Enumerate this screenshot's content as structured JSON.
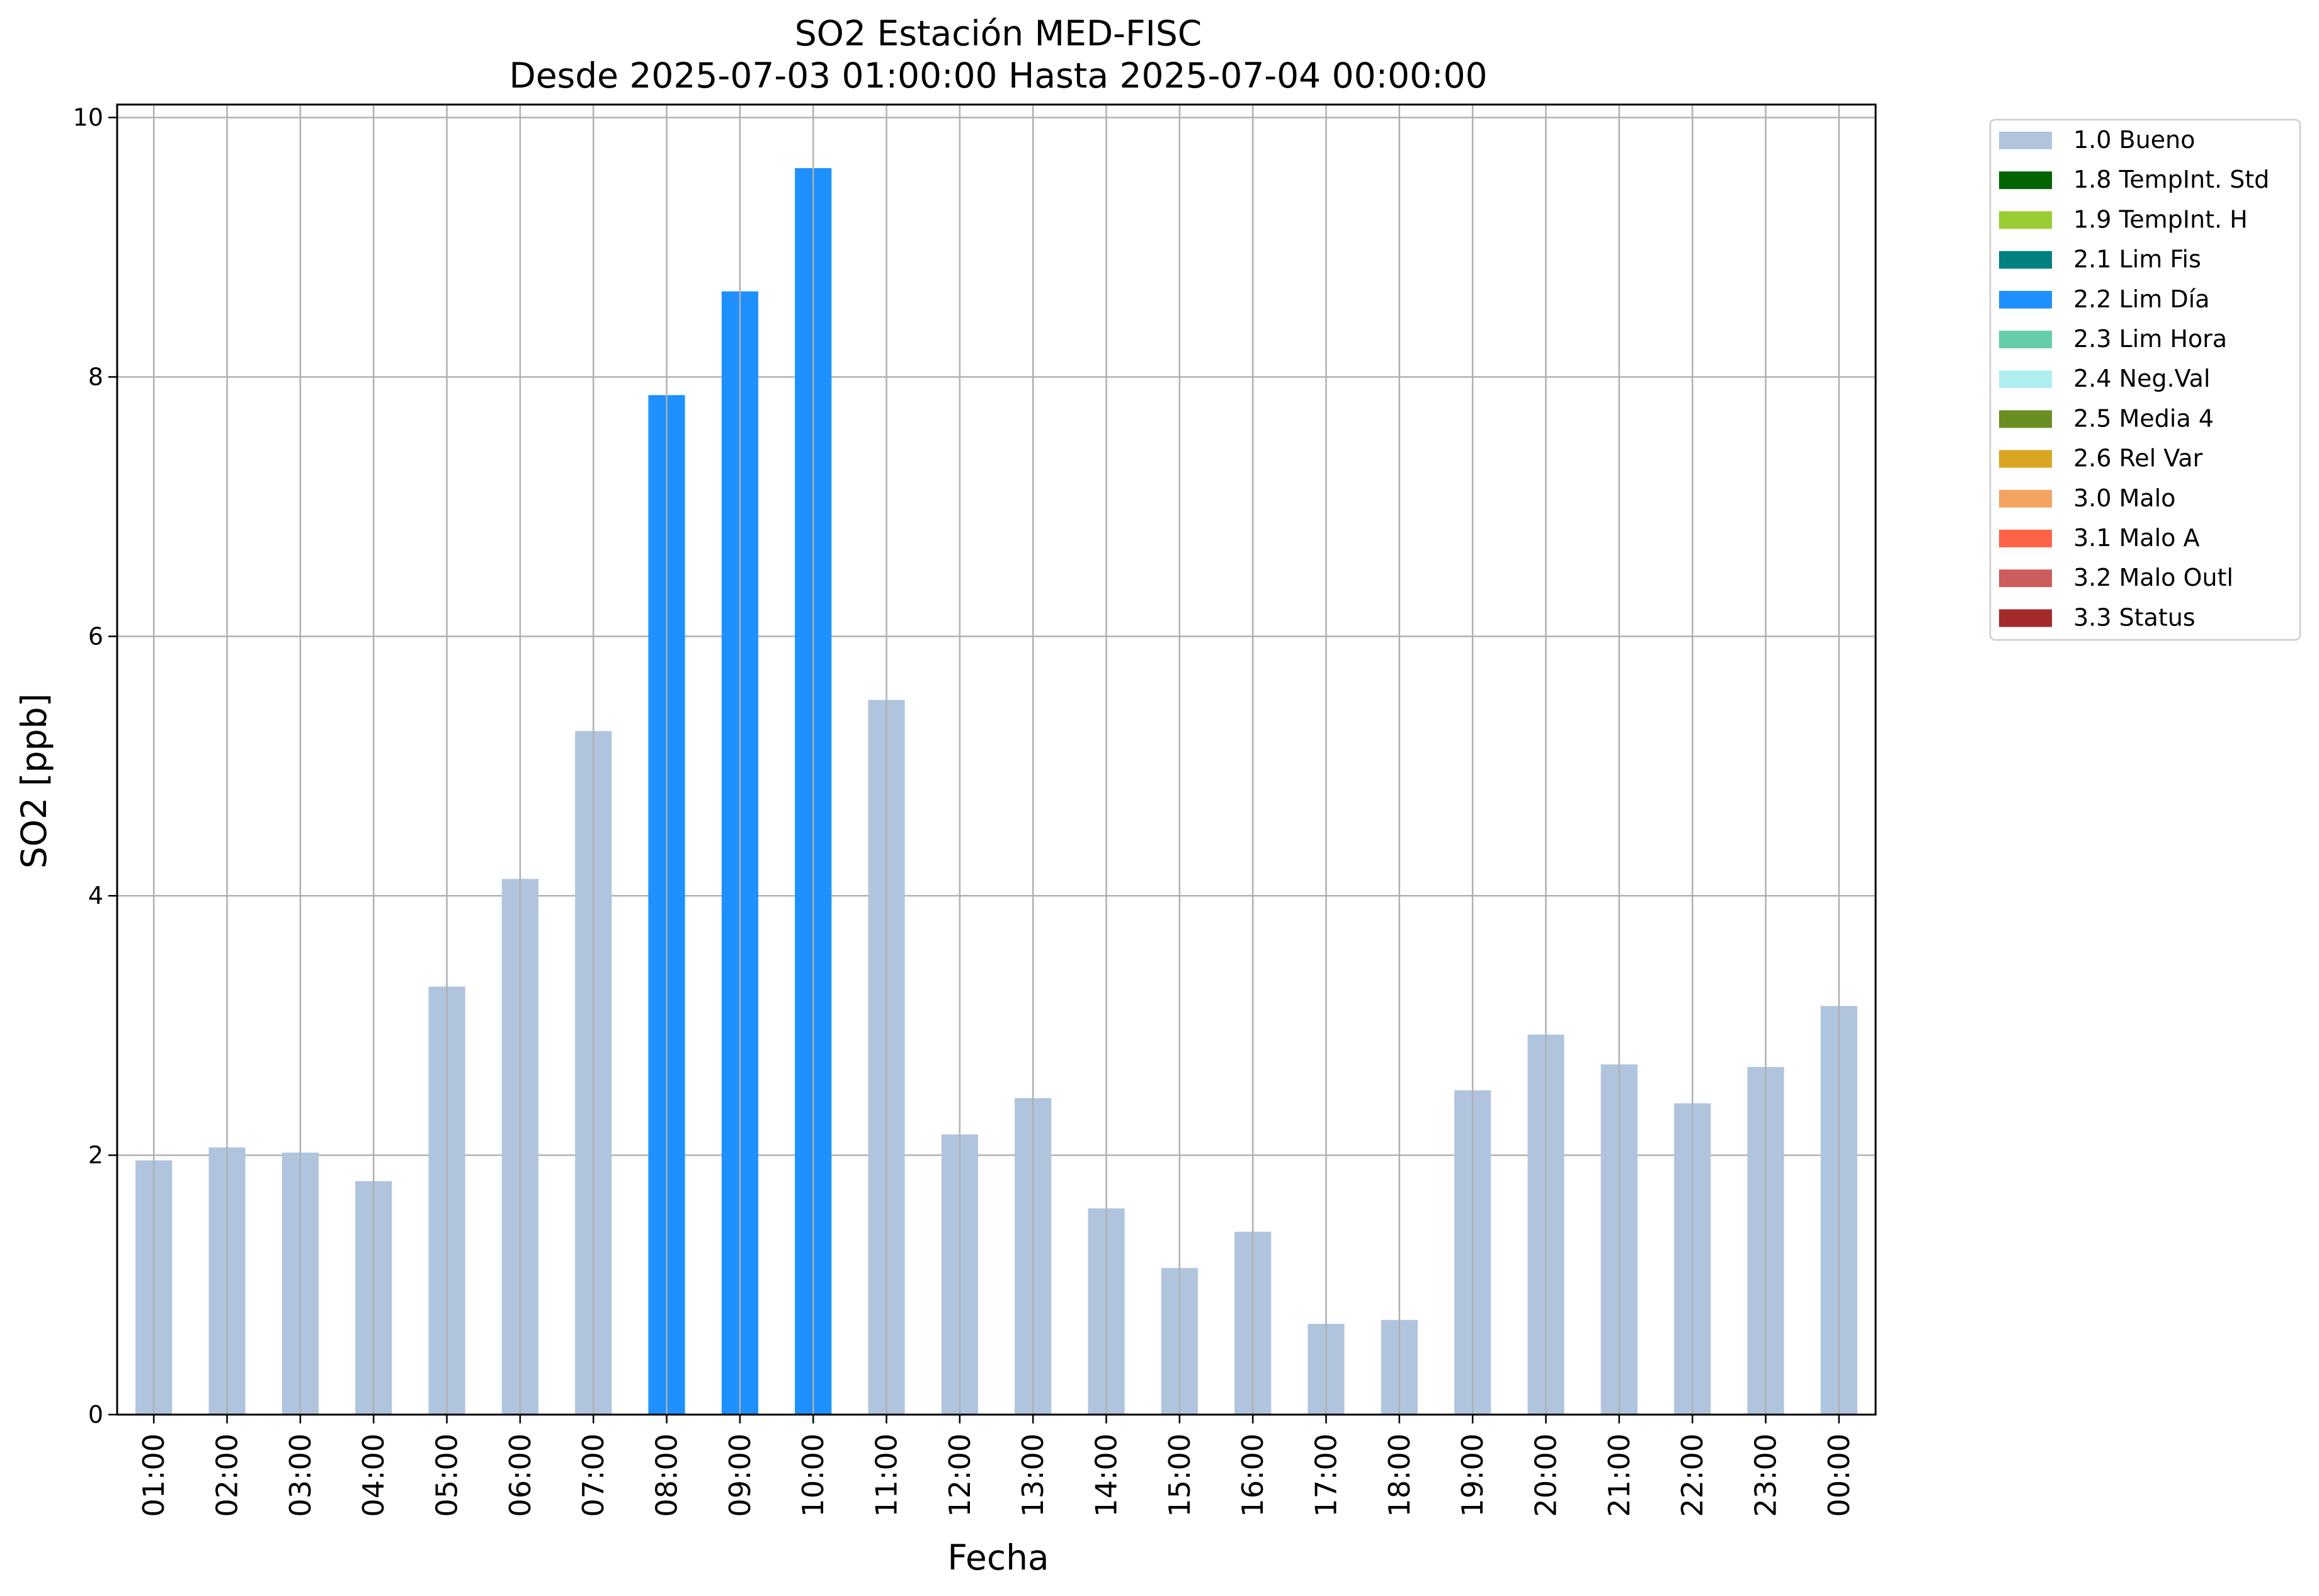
{
  "chart_data": {
    "type": "bar",
    "title": "SO2 Estación MED-FISC",
    "subtitle": "Desde 2025-07-03 01:00:00 Hasta 2025-07-04 00:00:00",
    "xlabel": "Fecha",
    "ylabel": "SO2 [ppb]",
    "ylim": [
      0,
      10.1
    ],
    "yticks": [
      0,
      2,
      4,
      6,
      8,
      10
    ],
    "grid": true,
    "legend_position": "outside top-right",
    "categories": [
      "01:00",
      "02:00",
      "03:00",
      "04:00",
      "05:00",
      "06:00",
      "07:00",
      "08:00",
      "09:00",
      "10:00",
      "11:00",
      "12:00",
      "13:00",
      "14:00",
      "15:00",
      "16:00",
      "17:00",
      "18:00",
      "19:00",
      "20:00",
      "21:00",
      "22:00",
      "23:00",
      "00:00"
    ],
    "values": [
      1.96,
      2.06,
      2.02,
      1.8,
      3.3,
      4.13,
      5.27,
      7.86,
      8.66,
      9.61,
      5.51,
      2.16,
      2.44,
      1.59,
      1.13,
      1.41,
      0.7,
      0.73,
      2.5,
      2.93,
      2.7,
      2.4,
      2.68,
      3.15
    ],
    "bar_flags": [
      "1.0 Bueno",
      "1.0 Bueno",
      "1.0 Bueno",
      "1.0 Bueno",
      "1.0 Bueno",
      "1.0 Bueno",
      "1.0 Bueno",
      "2.2 Lim Día",
      "2.2 Lim Día",
      "2.2 Lim Día",
      "1.0 Bueno",
      "1.0 Bueno",
      "1.0 Bueno",
      "1.0 Bueno",
      "1.0 Bueno",
      "1.0 Bueno",
      "1.0 Bueno",
      "1.0 Bueno",
      "1.0 Bueno",
      "1.0 Bueno",
      "1.0 Bueno",
      "1.0 Bueno",
      "1.0 Bueno",
      "1.0 Bueno"
    ],
    "legend": [
      {
        "label": "1.0 Bueno",
        "color": "#b0c4de"
      },
      {
        "label": "1.8 TempInt. Std",
        "color": "#006400"
      },
      {
        "label": "1.9 TempInt. H",
        "color": "#9acd32"
      },
      {
        "label": "2.1 Lim Fis",
        "color": "#008080"
      },
      {
        "label": "2.2 Lim Día",
        "color": "#1e90ff"
      },
      {
        "label": "2.3 Lim Hora",
        "color": "#66cdaa"
      },
      {
        "label": "2.4 Neg.Val",
        "color": "#afeeee"
      },
      {
        "label": "2.5 Media 4",
        "color": "#6b8e23"
      },
      {
        "label": "2.6 Rel Var",
        "color": "#daa520"
      },
      {
        "label": "3.0 Malo",
        "color": "#f4a460"
      },
      {
        "label": "3.1 Malo A",
        "color": "#ff6347"
      },
      {
        "label": "3.2 Malo Outl",
        "color": "#cd5c5c"
      },
      {
        "label": "3.3 Status",
        "color": "#a52a2a"
      }
    ]
  }
}
